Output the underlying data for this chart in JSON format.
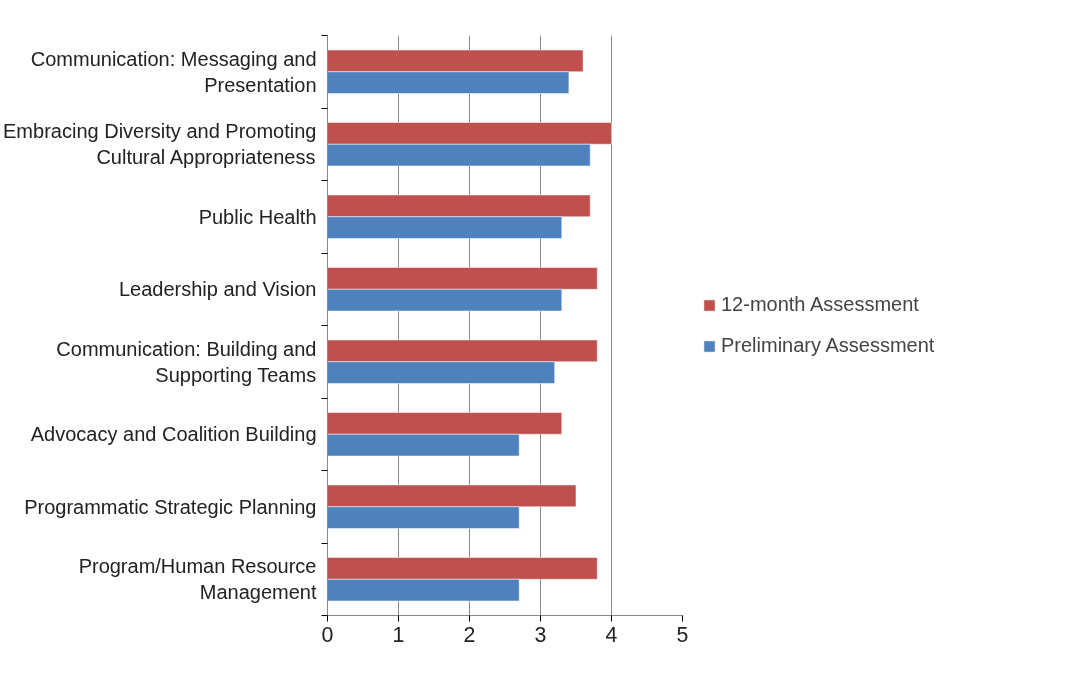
{
  "chart_data": {
    "type": "bar",
    "orientation": "horizontal",
    "categories": [
      "Communication: Messaging and Presentation",
      "Embracing Diversity and Promoting Cultural Appropriateness",
      "Public Health",
      "Leadership and Vision",
      "Communication: Building and Supporting Teams",
      "Advocacy and Coalition Building",
      "Programmatic Strategic Planning",
      "Program/Human Resource Management"
    ],
    "series": [
      {
        "name": "12-month Assessment",
        "color": "#c0504d",
        "values": [
          3.6,
          4.0,
          3.7,
          3.8,
          3.8,
          3.3,
          3.5,
          3.8
        ]
      },
      {
        "name": "Preliminary Assessment",
        "color": "#4f81bd",
        "values": [
          3.4,
          3.7,
          3.3,
          3.3,
          3.2,
          2.7,
          2.7,
          2.7
        ]
      }
    ],
    "xlim": [
      0,
      5
    ],
    "xticks": [
      0,
      1,
      2,
      3,
      4,
      5
    ],
    "grid": "x",
    "legend": "right"
  }
}
